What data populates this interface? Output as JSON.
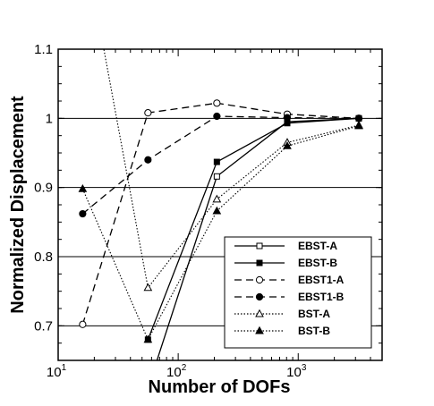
{
  "chart_data": {
    "type": "line",
    "xlabel": "Number of DOFs",
    "ylabel": "Normalized Displacement",
    "x_scale": "log",
    "xlim": [
      10,
      5000
    ],
    "ylim": [
      0.65,
      1.1
    ],
    "x_ticks": [
      {
        "value": 10,
        "base": "10",
        "exp": "1"
      },
      {
        "value": 100,
        "base": "10",
        "exp": "2"
      },
      {
        "value": 1000,
        "base": "10",
        "exp": "3"
      }
    ],
    "y_ticks": [
      {
        "value": 0.7,
        "label": "0.7"
      },
      {
        "value": 0.8,
        "label": "0.8"
      },
      {
        "value": 0.9,
        "label": "0.9"
      },
      {
        "value": 1.0,
        "label": "1"
      },
      {
        "value": 1.1,
        "label": "1.1"
      }
    ],
    "gridlines_y": [
      0.7,
      0.8,
      0.9,
      1.0
    ],
    "legend_position": "bottom-right",
    "series": [
      {
        "name": "EBST-A",
        "dash": "solid",
        "marker": "square-open",
        "x": [
          56,
          210,
          810,
          3200
        ],
        "y": [
          0.61,
          0.916,
          0.995,
          1.0
        ]
      },
      {
        "name": "EBST-B",
        "dash": "solid",
        "marker": "square-filled",
        "x": [
          56,
          210,
          810,
          3200
        ],
        "y": [
          0.68,
          0.937,
          0.993,
          1.0
        ]
      },
      {
        "name": "EBST1-A",
        "dash": "dashed",
        "marker": "circle-open",
        "x": [
          16,
          56,
          210,
          810,
          3200
        ],
        "y": [
          0.702,
          1.008,
          1.022,
          1.006,
          1.0
        ]
      },
      {
        "name": "EBST1-B",
        "dash": "dashed",
        "marker": "circle-filled",
        "x": [
          16,
          56,
          210,
          810,
          3200
        ],
        "y": [
          0.862,
          0.94,
          1.003,
          1.001,
          1.0
        ]
      },
      {
        "name": "BST-A",
        "dash": "dotted",
        "marker": "triangle-open",
        "x": [
          9,
          56,
          210,
          810,
          3200
        ],
        "y": [
          1.5,
          0.755,
          0.883,
          0.965,
          0.99
        ]
      },
      {
        "name": "BST-B",
        "dash": "dotted",
        "marker": "triangle-filled",
        "x": [
          16,
          56,
          210,
          810,
          3200
        ],
        "y": [
          0.898,
          0.68,
          0.866,
          0.96,
          0.989
        ]
      }
    ]
  }
}
